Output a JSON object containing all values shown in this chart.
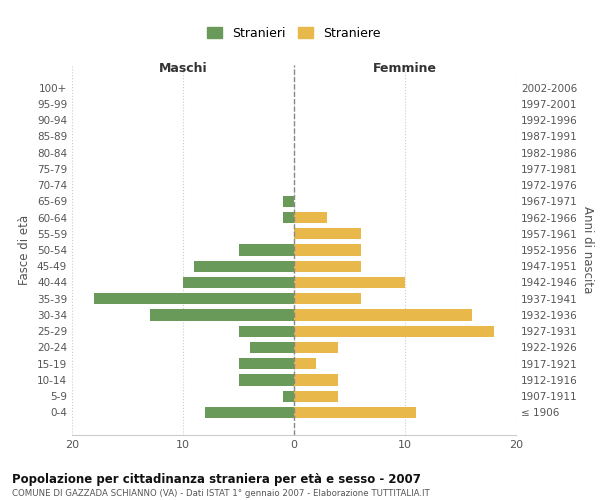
{
  "age_groups": [
    "100+",
    "95-99",
    "90-94",
    "85-89",
    "80-84",
    "75-79",
    "70-74",
    "65-69",
    "60-64",
    "55-59",
    "50-54",
    "45-49",
    "40-44",
    "35-39",
    "30-34",
    "25-29",
    "20-24",
    "15-19",
    "10-14",
    "5-9",
    "0-4"
  ],
  "birth_years": [
    "≤ 1906",
    "1907-1911",
    "1912-1916",
    "1917-1921",
    "1922-1926",
    "1927-1931",
    "1932-1936",
    "1937-1941",
    "1942-1946",
    "1947-1951",
    "1952-1956",
    "1957-1961",
    "1962-1966",
    "1967-1971",
    "1972-1976",
    "1977-1981",
    "1982-1986",
    "1987-1991",
    "1992-1996",
    "1997-2001",
    "2002-2006"
  ],
  "maschi": [
    0,
    0,
    0,
    0,
    0,
    0,
    0,
    1,
    1,
    0,
    5,
    9,
    10,
    18,
    13,
    5,
    4,
    5,
    5,
    1,
    8
  ],
  "femmine": [
    0,
    0,
    0,
    0,
    0,
    0,
    0,
    0,
    3,
    6,
    6,
    6,
    10,
    6,
    16,
    18,
    4,
    2,
    4,
    4,
    11
  ],
  "color_maschi": "#6a9a5a",
  "color_femmine": "#e8b84b",
  "title": "Popolazione per cittadinanza straniera per età e sesso - 2007",
  "subtitle": "COMUNE DI GAZZADA SCHIANNO (VA) - Dati ISTAT 1° gennaio 2007 - Elaborazione TUTTITALIA.IT",
  "xlabel_maschi": "Maschi",
  "xlabel_femmine": "Femmine",
  "ylabel_left": "Fasce di età",
  "ylabel_right": "Anni di nascita",
  "legend_maschi": "Stranieri",
  "legend_femmine": "Straniere",
  "xlim": 20,
  "background_color": "#ffffff",
  "grid_color": "#cccccc"
}
